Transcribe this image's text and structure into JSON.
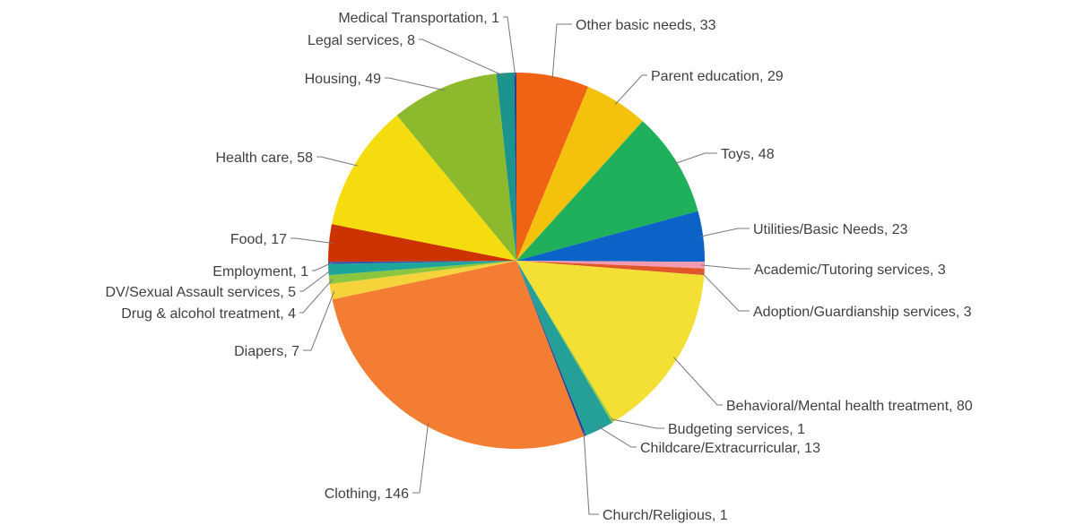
{
  "chart_data": {
    "type": "pie",
    "start_angle_deg": 0,
    "direction": "clockwise",
    "slices": [
      {
        "label": "Other basic needs",
        "value": 33,
        "color": "#f06214",
        "display": "Other basic needs, 33"
      },
      {
        "label": "Parent education",
        "value": 29,
        "color": "#f4c20d",
        "display": "Parent education, 29"
      },
      {
        "label": "Toys",
        "value": 48,
        "color": "#20b05c",
        "display": "Toys, 48"
      },
      {
        "label": "Utilities/Basic Needs",
        "value": 23,
        "color": "#0b63c8",
        "display": "Utilities/Basic Needs, 23"
      },
      {
        "label": "Academic/Tutoring services",
        "value": 3,
        "color": "#f29ab1",
        "display": "Academic/Tutoring services, 3"
      },
      {
        "label": "Adoption/Guardianship services",
        "value": 3,
        "color": "#e0552a",
        "display": "Adoption/Guardianship services, 3"
      },
      {
        "label": "Behavioral/Mental health treatment",
        "value": 80,
        "color": "#f4e034",
        "display": "Behavioral/Mental health treatment, 80"
      },
      {
        "label": "Budgeting services",
        "value": 1,
        "color": "#9ccc3c",
        "display": "Budgeting services, 1"
      },
      {
        "label": "Childcare/Extracurricular",
        "value": 13,
        "color": "#25a099",
        "display": "Childcare/Extracurricular, 13"
      },
      {
        "label": "Church/Religious",
        "value": 1,
        "color": "#2a3f8f",
        "display": "Church/Religious, 1"
      },
      {
        "label": "Clothing",
        "value": 146,
        "color": "#f37d33",
        "display": "Clothing, 146"
      },
      {
        "label": "Diapers",
        "value": 7,
        "color": "#f5d33a",
        "display": "Diapers, 7"
      },
      {
        "label": "Drug & alcohol treatment",
        "value": 4,
        "color": "#8cc63e",
        "display": "Drug & alcohol treatment, 4"
      },
      {
        "label": "DV/Sexual Assault services",
        "value": 5,
        "color": "#1da59b",
        "display": "DV/Sexual Assault services, 5"
      },
      {
        "label": "Employment",
        "value": 1,
        "color": "#3a52a8",
        "display": "Employment, 1"
      },
      {
        "label": "Food",
        "value": 17,
        "color": "#cc3300",
        "display": "Food, 17"
      },
      {
        "label": "Health care",
        "value": 58,
        "color": "#f5dc0f",
        "display": "Health care, 58"
      },
      {
        "label": "Housing",
        "value": 49,
        "color": "#8dba2c",
        "display": "Housing, 49"
      },
      {
        "label": "Legal services",
        "value": 8,
        "color": "#1a948c",
        "display": "Legal services, 8"
      },
      {
        "label": "Medical Transportation",
        "value": 1,
        "color": "#2d3f8a",
        "display": "Medical Transportation, 1"
      }
    ]
  }
}
